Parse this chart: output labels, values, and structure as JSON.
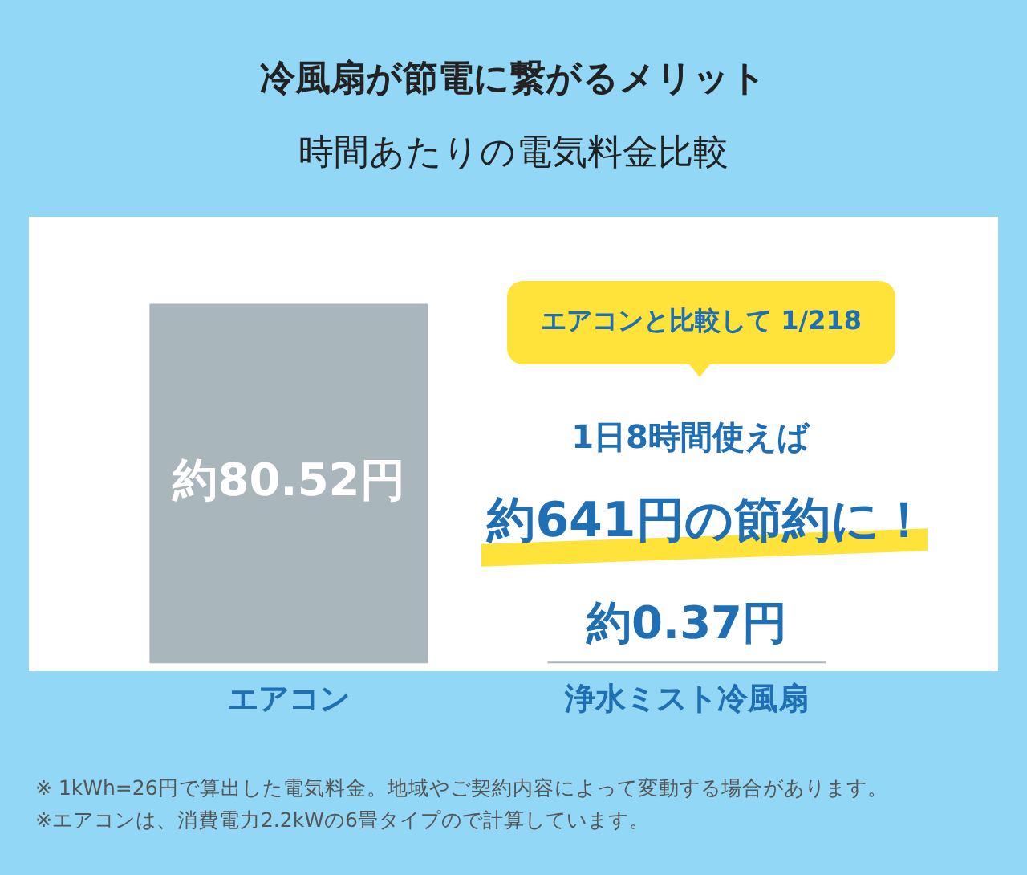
{
  "chart_data": {
    "type": "bar",
    "title": "冷風扇が節電に繋がるメリット",
    "subtitle": "時間あたりの電気料金比較",
    "categories": [
      "エアコン",
      "浄水ミスト冷風扇"
    ],
    "values": [
      80.52,
      0.37
    ],
    "colors": [
      "#a9b6bc",
      "#a9b6bc"
    ],
    "value_labels": [
      "約80.52円",
      "約0.37円"
    ],
    "annotations": [
      "エアコンと比較して 1/218",
      "1日8時間使えば",
      "約641円の節約に！",
      "※ 1kWh=26円で算出した電気料金。地域やご契約内容によって変動する場合があります。",
      "※エアコンは、消費電力2.2kWの6畳タイプので計算しています。"
    ]
  }
}
